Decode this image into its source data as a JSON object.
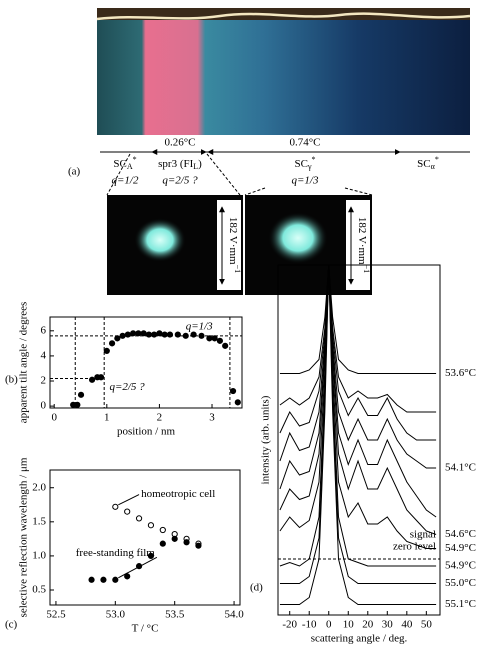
{
  "panel_a": {
    "label": "(a)",
    "intervals": [
      "0.26°C",
      "0.74°C"
    ],
    "phases": [
      {
        "name": "SC",
        "sub": "A",
        "sup": "*",
        "q": "q=1/2"
      },
      {
        "name": "spr3 (FI",
        "sub": "L",
        "tail": ")",
        "q": "q=2/5 ?"
      },
      {
        "name": "SC",
        "sub": "γ",
        "sup": "*",
        "q": "q=1/3"
      },
      {
        "name": "SC",
        "sub": "α",
        "sup": "*"
      }
    ],
    "field_labels": [
      {
        "text": "182 V·mm",
        "sup": "−1"
      },
      {
        "text": "182 V·mm",
        "sup": "−1"
      }
    ]
  },
  "chart_data": [
    {
      "type": "scatter",
      "label": "(b)",
      "xlabel": "position / nm",
      "ylabel": "apparent tilt angle / degrees",
      "xlim": [
        -0.08,
        3.57
      ],
      "ylim": [
        -0.15,
        7.1
      ],
      "xticks": [
        0,
        1,
        2,
        3
      ],
      "yticks": [
        0,
        2,
        4,
        6
      ],
      "x": [
        0.36,
        0.44,
        0.51,
        0.72,
        0.82,
        0.89,
        1.0,
        1.1,
        1.2,
        1.3,
        1.4,
        1.5,
        1.6,
        1.7,
        1.8,
        1.9,
        2.0,
        2.1,
        2.2,
        2.35,
        2.5,
        2.65,
        2.8,
        2.95,
        3.05,
        3.15,
        3.25,
        3.4,
        3.49
      ],
      "series": [
        {
          "color": "#000000",
          "marker": "filled",
          "values": [
            0.1,
            0.1,
            0.9,
            2.1,
            2.3,
            2.3,
            4.4,
            5.0,
            5.4,
            5.6,
            5.7,
            5.8,
            5.8,
            5.8,
            5.7,
            5.7,
            5.8,
            5.7,
            5.7,
            5.7,
            5.6,
            5.7,
            5.6,
            5.4,
            5.4,
            5.2,
            4.8,
            1.2,
            0.3
          ]
        }
      ],
      "vlines": [
        0.4,
        0.95,
        3.34
      ],
      "hlines": [
        5.6,
        2.2
      ],
      "annotations": [
        "q=1/3",
        "q=2/5 ?"
      ]
    },
    {
      "type": "scatter",
      "label": "(c)",
      "xlabel": "T / °C",
      "ylabel": "selective reflection wavelength / μm",
      "xlim": [
        52.45,
        54.05
      ],
      "ylim": [
        0.28,
        2.26
      ],
      "xticks": [
        {
          "value": 52.5,
          "label": "52.5"
        },
        {
          "value": 53,
          "label": "53.0"
        },
        {
          "value": 53.5,
          "label": "53.5"
        },
        {
          "value": 54,
          "label": "54.0"
        }
      ],
      "yticks": [
        0.5,
        {
          "value": 1,
          "label": "1.0"
        },
        1.5,
        {
          "value": 2,
          "label": "2.0"
        }
      ],
      "series": [
        {
          "name": "homeotropic cell",
          "color": "#000000",
          "marker": "open",
          "x": [
            53.0,
            53.1,
            53.2,
            53.3,
            53.4,
            53.5,
            53.6,
            53.7
          ],
          "values": [
            1.72,
            1.65,
            1.55,
            1.45,
            1.38,
            1.32,
            1.25,
            1.18
          ]
        },
        {
          "name": "free-standing film",
          "color": "#000000",
          "marker": "filled",
          "x": [
            52.8,
            52.9,
            53.0,
            53.1,
            53.2,
            53.3,
            53.4,
            53.5,
            53.6,
            53.7
          ],
          "values": [
            0.65,
            0.65,
            0.65,
            0.7,
            0.85,
            1.0,
            1.18,
            1.25,
            1.2,
            1.15
          ]
        }
      ]
    },
    {
      "type": "line",
      "label": "(d)",
      "xlabel": "scattering angle / deg.",
      "ylabel": "intensity (arb. units)",
      "xlim": [
        -26,
        57
      ],
      "ylim": [
        0,
        100
      ],
      "xticks": [
        -20,
        -10,
        0,
        10,
        20,
        30,
        40,
        50
      ],
      "x": [
        -25,
        -20,
        -15,
        -10,
        -5,
        -2,
        0,
        2,
        5,
        10,
        15,
        20,
        25,
        30,
        35,
        40,
        45,
        50,
        55
      ],
      "zero_level": 16,
      "annotations": [
        "signal",
        "zero level"
      ],
      "series": [
        {
          "name": "53.6°C",
          "color": "#000000",
          "values": [
            69,
            69,
            69,
            70,
            73,
            85,
            100,
            85,
            73,
            70,
            69,
            69,
            69,
            69,
            69,
            69,
            69,
            69,
            69
          ]
        },
        {
          "color": "#000000",
          "values": [
            60,
            62,
            60,
            62,
            68,
            82,
            100,
            82,
            68,
            62,
            64,
            62,
            62,
            63,
            60,
            58,
            58,
            58,
            58
          ]
        },
        {
          "color": "#000000",
          "values": [
            52,
            58,
            54,
            55,
            64,
            80,
            100,
            80,
            64,
            57,
            62,
            57,
            57,
            62,
            56,
            52,
            50,
            50,
            50
          ]
        },
        {
          "name": "54.1°C",
          "color": "#000000",
          "values": [
            44,
            52,
            47,
            48,
            58,
            78,
            100,
            78,
            58,
            50,
            56,
            50,
            50,
            56,
            50,
            46,
            44,
            42,
            42
          ]
        },
        {
          "color": "#000000",
          "values": [
            36,
            44,
            40,
            41,
            52,
            76,
            100,
            76,
            52,
            43,
            50,
            43,
            43,
            50,
            44,
            38,
            34,
            30,
            28
          ]
        },
        {
          "name": "54.6°C",
          "color": "#000000",
          "values": [
            30,
            36,
            33,
            34,
            46,
            74,
            100,
            74,
            46,
            36,
            44,
            36,
            36,
            42,
            36,
            30,
            27,
            24,
            23
          ]
        },
        {
          "name": "54.9°C",
          "color": "#000000",
          "values": [
            24,
            28,
            25,
            27,
            38,
            70,
            100,
            70,
            38,
            28,
            32,
            26,
            26,
            28,
            24,
            21,
            20,
            19,
            19
          ]
        },
        {
          "name": "54.9°C",
          "color": "#000000",
          "values": [
            14,
            15,
            14,
            16,
            28,
            66,
            100,
            66,
            28,
            16,
            15,
            14,
            14,
            14,
            14,
            14,
            14,
            14,
            14
          ]
        },
        {
          "name": "55.0°C",
          "color": "#000000",
          "values": [
            9,
            9,
            9,
            11,
            22,
            62,
            100,
            62,
            22,
            11,
            9,
            9,
            9,
            9,
            9,
            9,
            9,
            9,
            9
          ]
        },
        {
          "name": "55.1°C",
          "color": "#000000",
          "values": [
            3,
            3,
            3,
            5,
            16,
            58,
            100,
            58,
            16,
            5,
            3,
            3,
            3,
            3,
            3,
            3,
            3,
            3,
            3
          ]
        }
      ]
    }
  ]
}
